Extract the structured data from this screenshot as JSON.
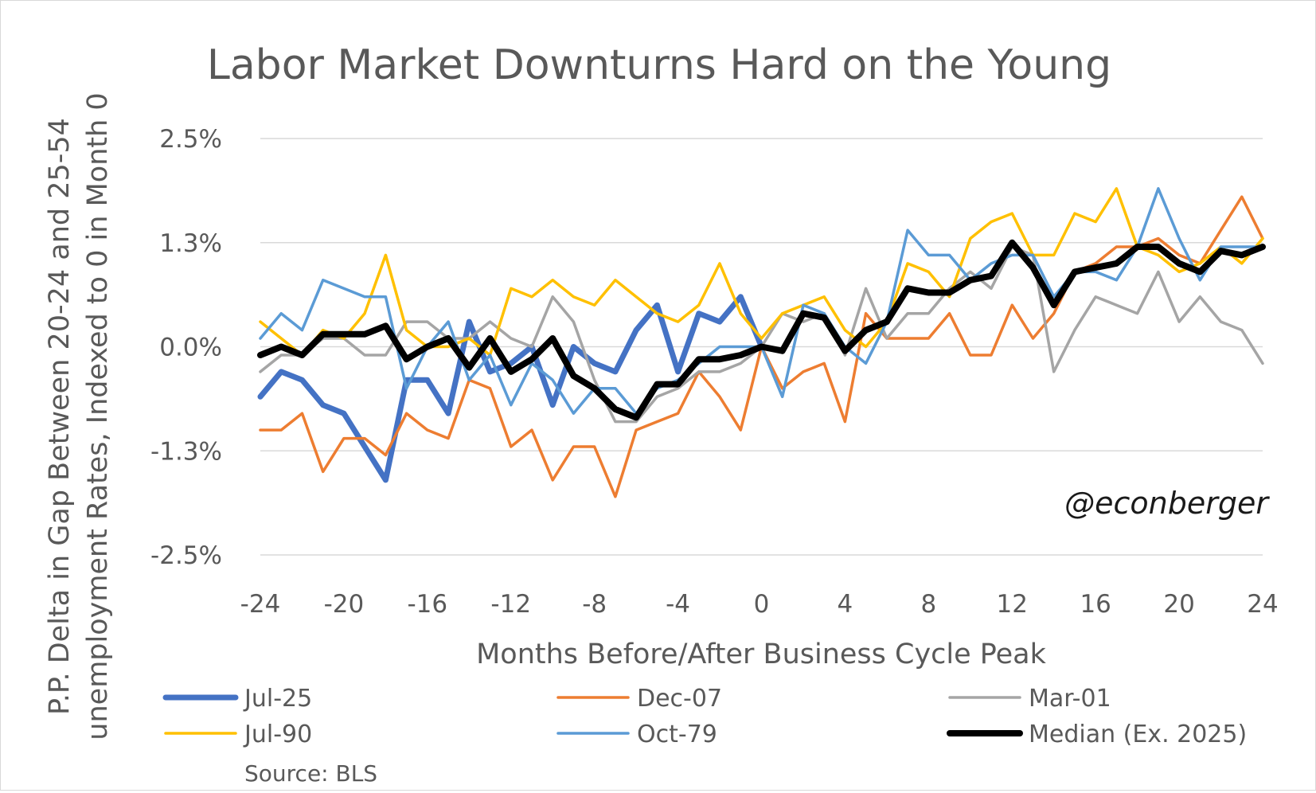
{
  "chart_data": {
    "type": "line",
    "title": "Labor Market Downturns Hard on the Young",
    "xlabel": "Months Before/After Business Cycle Peak",
    "ylabel": "P.P. Delta in Gap Between 20-24 and 25-54 unemployment Rates, Indexed to 0 in  Month 0",
    "ylabel_lines": [
      "P.P. Delta in Gap Between 20-24 and 25-54",
      "unemployment Rates, Indexed to 0 in  Month 0"
    ],
    "xlim": [
      -24,
      24
    ],
    "ylim": [
      -2.5,
      2.5
    ],
    "x_ticks": [
      "-24",
      "-20",
      "-16",
      "-12",
      "-8",
      "-4",
      "0",
      "4",
      "8",
      "12",
      "16",
      "20",
      "24"
    ],
    "y_ticks": [
      "2.5%",
      "1.3%",
      "0.0%",
      "-1.3%",
      "-2.5%"
    ],
    "y_tick_values": [
      2.5,
      1.25,
      0,
      -1.25,
      -2.5
    ],
    "grid": "horizontal",
    "legend_position": "bottom",
    "watermark": "@econberger",
    "source": "Source: BLS",
    "series": [
      {
        "name": "Jul-25",
        "color": "#4472C4",
        "width": 7,
        "x_start": -24,
        "values": [
          -0.6,
          -0.3,
          -0.4,
          -0.7,
          -0.8,
          -1.2,
          -1.6,
          -0.4,
          -0.4,
          -0.8,
          0.3,
          -0.3,
          -0.2,
          0.0,
          -0.7,
          0.0,
          -0.2,
          -0.3,
          0.2,
          0.5,
          -0.3,
          0.4,
          0.3,
          0.6,
          0.0
        ]
      },
      {
        "name": "Dec-07",
        "color": "#ED7D31",
        "width": 3.5,
        "x_start": -24,
        "values": [
          -1.0,
          -1.0,
          -0.8,
          -1.5,
          -1.1,
          -1.1,
          -1.3,
          -0.8,
          -1.0,
          -1.1,
          -0.4,
          -0.5,
          -1.2,
          -1.0,
          -1.6,
          -1.2,
          -1.2,
          -1.8,
          -1.0,
          -0.9,
          -0.8,
          -0.3,
          -0.6,
          -1.0,
          0.0,
          -0.5,
          -0.3,
          -0.2,
          -0.9,
          0.4,
          0.1,
          0.1,
          0.1,
          0.4,
          -0.1,
          -0.1,
          0.5,
          0.1,
          0.4,
          0.9,
          1.0,
          1.2,
          1.2,
          1.3,
          1.1,
          1.0,
          1.4,
          1.8,
          1.3
        ]
      },
      {
        "name": "Mar-01",
        "color": "#A5A5A5",
        "width": 3.5,
        "x_start": -24,
        "values": [
          -0.3,
          -0.1,
          -0.1,
          0.1,
          0.1,
          -0.1,
          -0.1,
          0.3,
          0.3,
          0.1,
          0.1,
          0.3,
          0.1,
          0.0,
          0.6,
          0.3,
          -0.4,
          -0.9,
          -0.9,
          -0.6,
          -0.5,
          -0.3,
          -0.3,
          -0.2,
          0.0,
          0.4,
          0.3,
          0.4,
          -0.1,
          0.7,
          0.1,
          0.4,
          0.4,
          0.7,
          0.9,
          0.7,
          1.2,
          1.1,
          -0.3,
          0.2,
          0.6,
          0.5,
          0.4,
          0.9,
          0.3,
          0.6,
          0.3,
          0.2,
          -0.2
        ]
      },
      {
        "name": "Jul-90",
        "color": "#FFC000",
        "width": 3.5,
        "x_start": -24,
        "values": [
          0.3,
          0.1,
          -0.1,
          0.2,
          0.1,
          0.4,
          1.1,
          0.2,
          0.0,
          0.0,
          0.1,
          -0.1,
          0.7,
          0.6,
          0.8,
          0.6,
          0.5,
          0.8,
          0.6,
          0.4,
          0.3,
          0.5,
          1.0,
          0.4,
          0.1,
          0.4,
          0.5,
          0.6,
          0.2,
          0.0,
          0.3,
          1.0,
          0.9,
          0.6,
          1.3,
          1.5,
          1.6,
          1.1,
          1.1,
          1.6,
          1.5,
          1.9,
          1.2,
          1.1,
          0.9,
          1.0,
          1.2,
          1.0,
          1.3
        ]
      },
      {
        "name": "Oct-79",
        "color": "#5B9BD5",
        "width": 3.5,
        "x_start": -24,
        "values": [
          0.1,
          0.4,
          0.2,
          0.8,
          0.7,
          0.6,
          0.6,
          -0.5,
          0.0,
          0.3,
          -0.4,
          -0.1,
          -0.7,
          -0.2,
          -0.4,
          -0.8,
          -0.5,
          -0.5,
          -0.8,
          -0.5,
          -0.4,
          -0.2,
          0.0,
          0.0,
          0.0,
          -0.6,
          0.5,
          0.4,
          0.0,
          -0.2,
          0.3,
          1.4,
          1.1,
          1.1,
          0.8,
          1.0,
          1.1,
          1.1,
          0.6,
          0.9,
          0.9,
          0.8,
          1.2,
          1.9,
          1.3,
          0.8,
          1.2,
          1.2,
          1.2
        ]
      },
      {
        "name": "Median (Ex. 2025)",
        "color": "#000000",
        "width": 8,
        "x_start": -24,
        "values": [
          -0.1,
          0.0,
          -0.1,
          0.15,
          0.15,
          0.15,
          0.25,
          -0.15,
          0.0,
          0.1,
          -0.25,
          0.1,
          -0.3,
          -0.15,
          0.1,
          -0.35,
          -0.5,
          -0.75,
          -0.85,
          -0.45,
          -0.45,
          -0.15,
          -0.15,
          -0.1,
          0.0,
          -0.05,
          0.4,
          0.35,
          -0.05,
          0.2,
          0.3,
          0.7,
          0.65,
          0.65,
          0.8,
          0.85,
          1.25,
          0.95,
          0.5,
          0.9,
          0.95,
          1.0,
          1.2,
          1.2,
          1.0,
          0.9,
          1.15,
          1.1,
          1.2
        ]
      }
    ]
  }
}
